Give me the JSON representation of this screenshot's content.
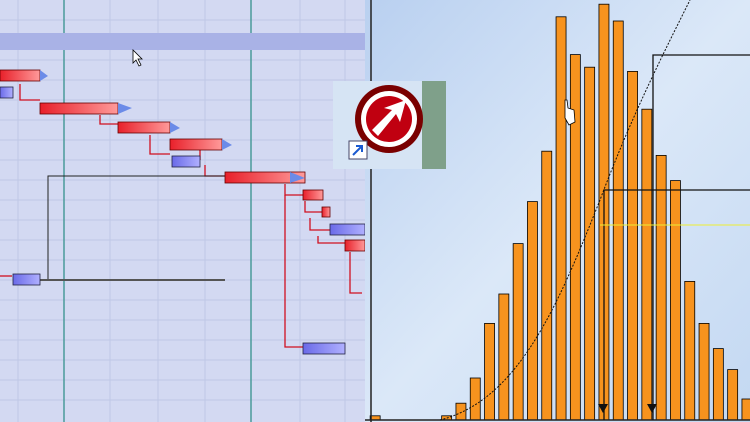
{
  "chart_data": {
    "type": "bar",
    "categories": [
      null,
      null,
      null,
      null,
      null,
      null,
      null,
      null,
      null,
      null,
      null,
      null,
      null,
      null,
      null,
      null,
      null,
      null,
      null,
      null,
      null,
      null,
      null,
      null,
      null,
      null,
      null
    ],
    "values": [
      1,
      null,
      null,
      null,
      null,
      1,
      4,
      10,
      23,
      30,
      42,
      52,
      64,
      96,
      87,
      84,
      99,
      95,
      83,
      74,
      63,
      57,
      33,
      23,
      17,
      12,
      5
    ],
    "color": "#f7931e",
    "ylim": [
      0,
      100
    ]
  }
}
